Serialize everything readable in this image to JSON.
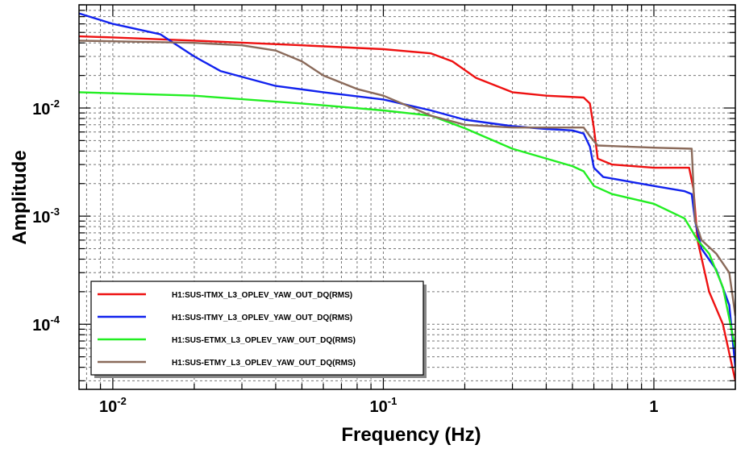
{
  "chart_data": {
    "type": "line",
    "title": "",
    "xlabel": "Frequency (Hz)",
    "ylabel": "Amplitude",
    "xscale": "log",
    "yscale": "log",
    "xlim": [
      0.0075,
      2.0
    ],
    "ylim": [
      2.5e-05,
      0.09
    ],
    "x_ticks": [
      {
        "value": 0.01,
        "base": "10",
        "exp": "-2"
      },
      {
        "value": 0.1,
        "base": "10",
        "exp": "-1"
      },
      {
        "value": 1,
        "base": "1",
        "exp": ""
      }
    ],
    "y_ticks": [
      {
        "value": 0.01,
        "base": "10",
        "exp": "-2"
      },
      {
        "value": 0.001,
        "base": "10",
        "exp": "-3"
      },
      {
        "value": 0.0001,
        "base": "10",
        "exp": "-4"
      }
    ],
    "grid": true,
    "legend_position": "bottom-left",
    "series": [
      {
        "name": "H1:SUS-ITMX_L3_OPLEV_YAW_OUT_DQ(RMS)",
        "color": "#ee1111",
        "points": [
          [
            0.0075,
            0.046
          ],
          [
            0.01,
            0.045
          ],
          [
            0.02,
            0.042
          ],
          [
            0.05,
            0.038
          ],
          [
            0.1,
            0.035
          ],
          [
            0.15,
            0.032
          ],
          [
            0.18,
            0.027
          ],
          [
            0.22,
            0.019
          ],
          [
            0.3,
            0.014
          ],
          [
            0.4,
            0.013
          ],
          [
            0.55,
            0.0125
          ],
          [
            0.58,
            0.011
          ],
          [
            0.6,
            0.0065
          ],
          [
            0.62,
            0.0034
          ],
          [
            0.7,
            0.003
          ],
          [
            1.0,
            0.0028
          ],
          [
            1.35,
            0.0028
          ],
          [
            1.4,
            0.0018
          ],
          [
            1.45,
            0.0006
          ],
          [
            1.6,
            0.0002
          ],
          [
            1.8,
            0.0001
          ],
          [
            2.0,
            3e-05
          ]
        ]
      },
      {
        "name": "H1:SUS-ITMY_L3_OPLEV_YAW_OUT_DQ(RMS)",
        "color": "#1122ee",
        "points": [
          [
            0.0075,
            0.075
          ],
          [
            0.01,
            0.06
          ],
          [
            0.015,
            0.048
          ],
          [
            0.02,
            0.03
          ],
          [
            0.025,
            0.022
          ],
          [
            0.04,
            0.016
          ],
          [
            0.06,
            0.014
          ],
          [
            0.1,
            0.012
          ],
          [
            0.15,
            0.0095
          ],
          [
            0.2,
            0.0078
          ],
          [
            0.3,
            0.0068
          ],
          [
            0.4,
            0.0064
          ],
          [
            0.5,
            0.0062
          ],
          [
            0.55,
            0.0058
          ],
          [
            0.58,
            0.0044
          ],
          [
            0.6,
            0.0028
          ],
          [
            0.65,
            0.0023
          ],
          [
            0.8,
            0.0021
          ],
          [
            1.0,
            0.0019
          ],
          [
            1.3,
            0.0017
          ],
          [
            1.38,
            0.0016
          ],
          [
            1.42,
            0.0009
          ],
          [
            1.5,
            0.0005
          ],
          [
            1.7,
            0.00032
          ],
          [
            1.9,
            0.00015
          ],
          [
            2.0,
            4e-05
          ]
        ]
      },
      {
        "name": "H1:SUS-ETMX_L3_OPLEV_YAW_OUT_DQ(RMS)",
        "color": "#22ee22",
        "points": [
          [
            0.0075,
            0.014
          ],
          [
            0.02,
            0.013
          ],
          [
            0.05,
            0.011
          ],
          [
            0.1,
            0.0095
          ],
          [
            0.15,
            0.0085
          ],
          [
            0.2,
            0.0065
          ],
          [
            0.3,
            0.0042
          ],
          [
            0.5,
            0.0029
          ],
          [
            0.55,
            0.0026
          ],
          [
            0.6,
            0.0019
          ],
          [
            0.7,
            0.0016
          ],
          [
            1.0,
            0.0013
          ],
          [
            1.3,
            0.00095
          ],
          [
            1.45,
            0.0006
          ],
          [
            1.6,
            0.00045
          ],
          [
            1.8,
            0.00022
          ],
          [
            2.0,
            6e-05
          ]
        ]
      },
      {
        "name": "H1:SUS-ETMY_L3_OPLEV_YAW_OUT_DQ(RMS)",
        "color": "#8a6a5a",
        "points": [
          [
            0.0075,
            0.042
          ],
          [
            0.02,
            0.04
          ],
          [
            0.03,
            0.038
          ],
          [
            0.04,
            0.034
          ],
          [
            0.05,
            0.027
          ],
          [
            0.06,
            0.02
          ],
          [
            0.08,
            0.015
          ],
          [
            0.1,
            0.013
          ],
          [
            0.15,
            0.0085
          ],
          [
            0.2,
            0.007
          ],
          [
            0.3,
            0.0066
          ],
          [
            0.55,
            0.0066
          ],
          [
            0.58,
            0.0055
          ],
          [
            0.62,
            0.0045
          ],
          [
            1.0,
            0.0043
          ],
          [
            1.38,
            0.0042
          ],
          [
            1.42,
            0.0009
          ],
          [
            1.5,
            0.0006
          ],
          [
            1.7,
            0.00045
          ],
          [
            1.9,
            0.0003
          ],
          [
            2.0,
            0.00012
          ]
        ]
      }
    ]
  }
}
